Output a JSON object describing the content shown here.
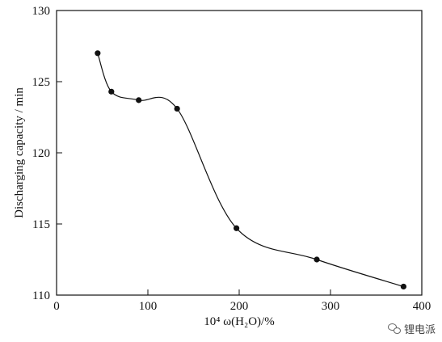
{
  "chart_data": {
    "type": "line",
    "title": "",
    "xlabel": "10⁴ ω(H₂O)/%",
    "ylabel": "Discharging capacity / min",
    "xlim": [
      0,
      400
    ],
    "ylim": [
      110,
      130
    ],
    "xticks": [
      0,
      100,
      200,
      300,
      400
    ],
    "yticks": [
      110,
      115,
      120,
      125,
      130
    ],
    "grid": false,
    "legend": "none",
    "series": [
      {
        "x": [
          45,
          60,
          90,
          132,
          197,
          285,
          380
        ],
        "y": [
          127.0,
          124.3,
          123.7,
          123.1,
          114.7,
          112.5,
          110.6
        ]
      }
    ],
    "line_color": "#111111",
    "marker_color": "#111111"
  },
  "watermark": {
    "text": "锂电派",
    "icon": "wechat-bubbles-icon"
  }
}
